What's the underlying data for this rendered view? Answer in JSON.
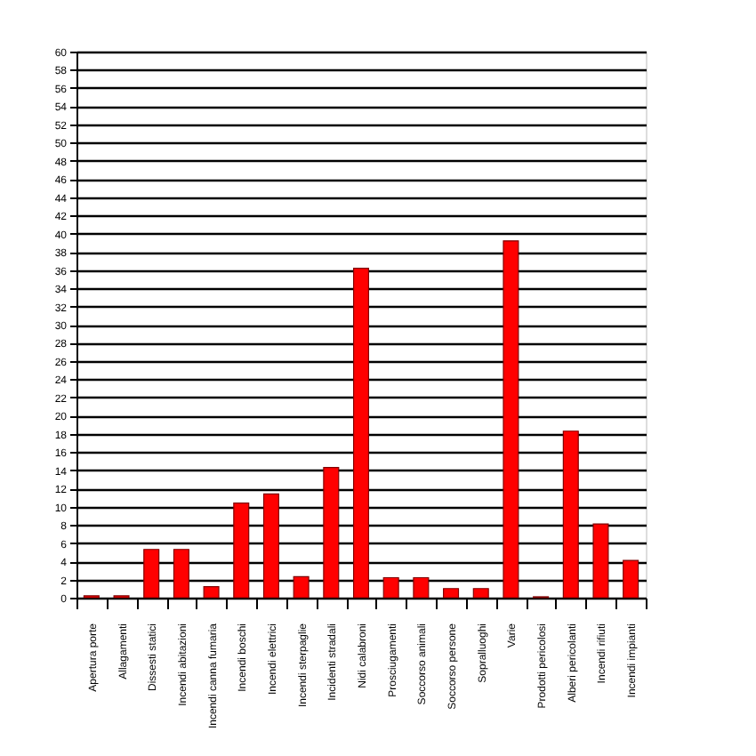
{
  "chart_data": {
    "type": "bar",
    "categories": [
      "Apertura porte",
      "Allagamenti",
      "Dissesti statici",
      "Incendi abitazioni",
      "Incendi canna fumaria",
      "Incendi boschi",
      "Incendi elettrici",
      "Incendi sterpaglie",
      "Incidenti stradali",
      "Nidi calabroni",
      "Prosciugamenti",
      "Soccorso animali",
      "Soccorso persone",
      "Sopralluoghi",
      "Varie",
      "Prodotti pericolosi",
      "Alberi pericolanti",
      "Incendi rifiuti",
      "Incendi impianti"
    ],
    "values": [
      0.2,
      0.2,
      5.3,
      5.3,
      1.2,
      10.4,
      11.4,
      2.3,
      14.3,
      36.2,
      2.2,
      2.2,
      1.0,
      1.0,
      39.2,
      0.1,
      18.3,
      8.1,
      4.1
    ],
    "color": "#ff0000",
    "ylim": [
      0,
      60
    ],
    "yticks": [
      0,
      2,
      4,
      6,
      8,
      10,
      12,
      14,
      16,
      18,
      20,
      22,
      24,
      26,
      28,
      30,
      32,
      34,
      36,
      38,
      40,
      42,
      44,
      46,
      48,
      50,
      52,
      54,
      56,
      58,
      60
    ],
    "grid": "y"
  }
}
